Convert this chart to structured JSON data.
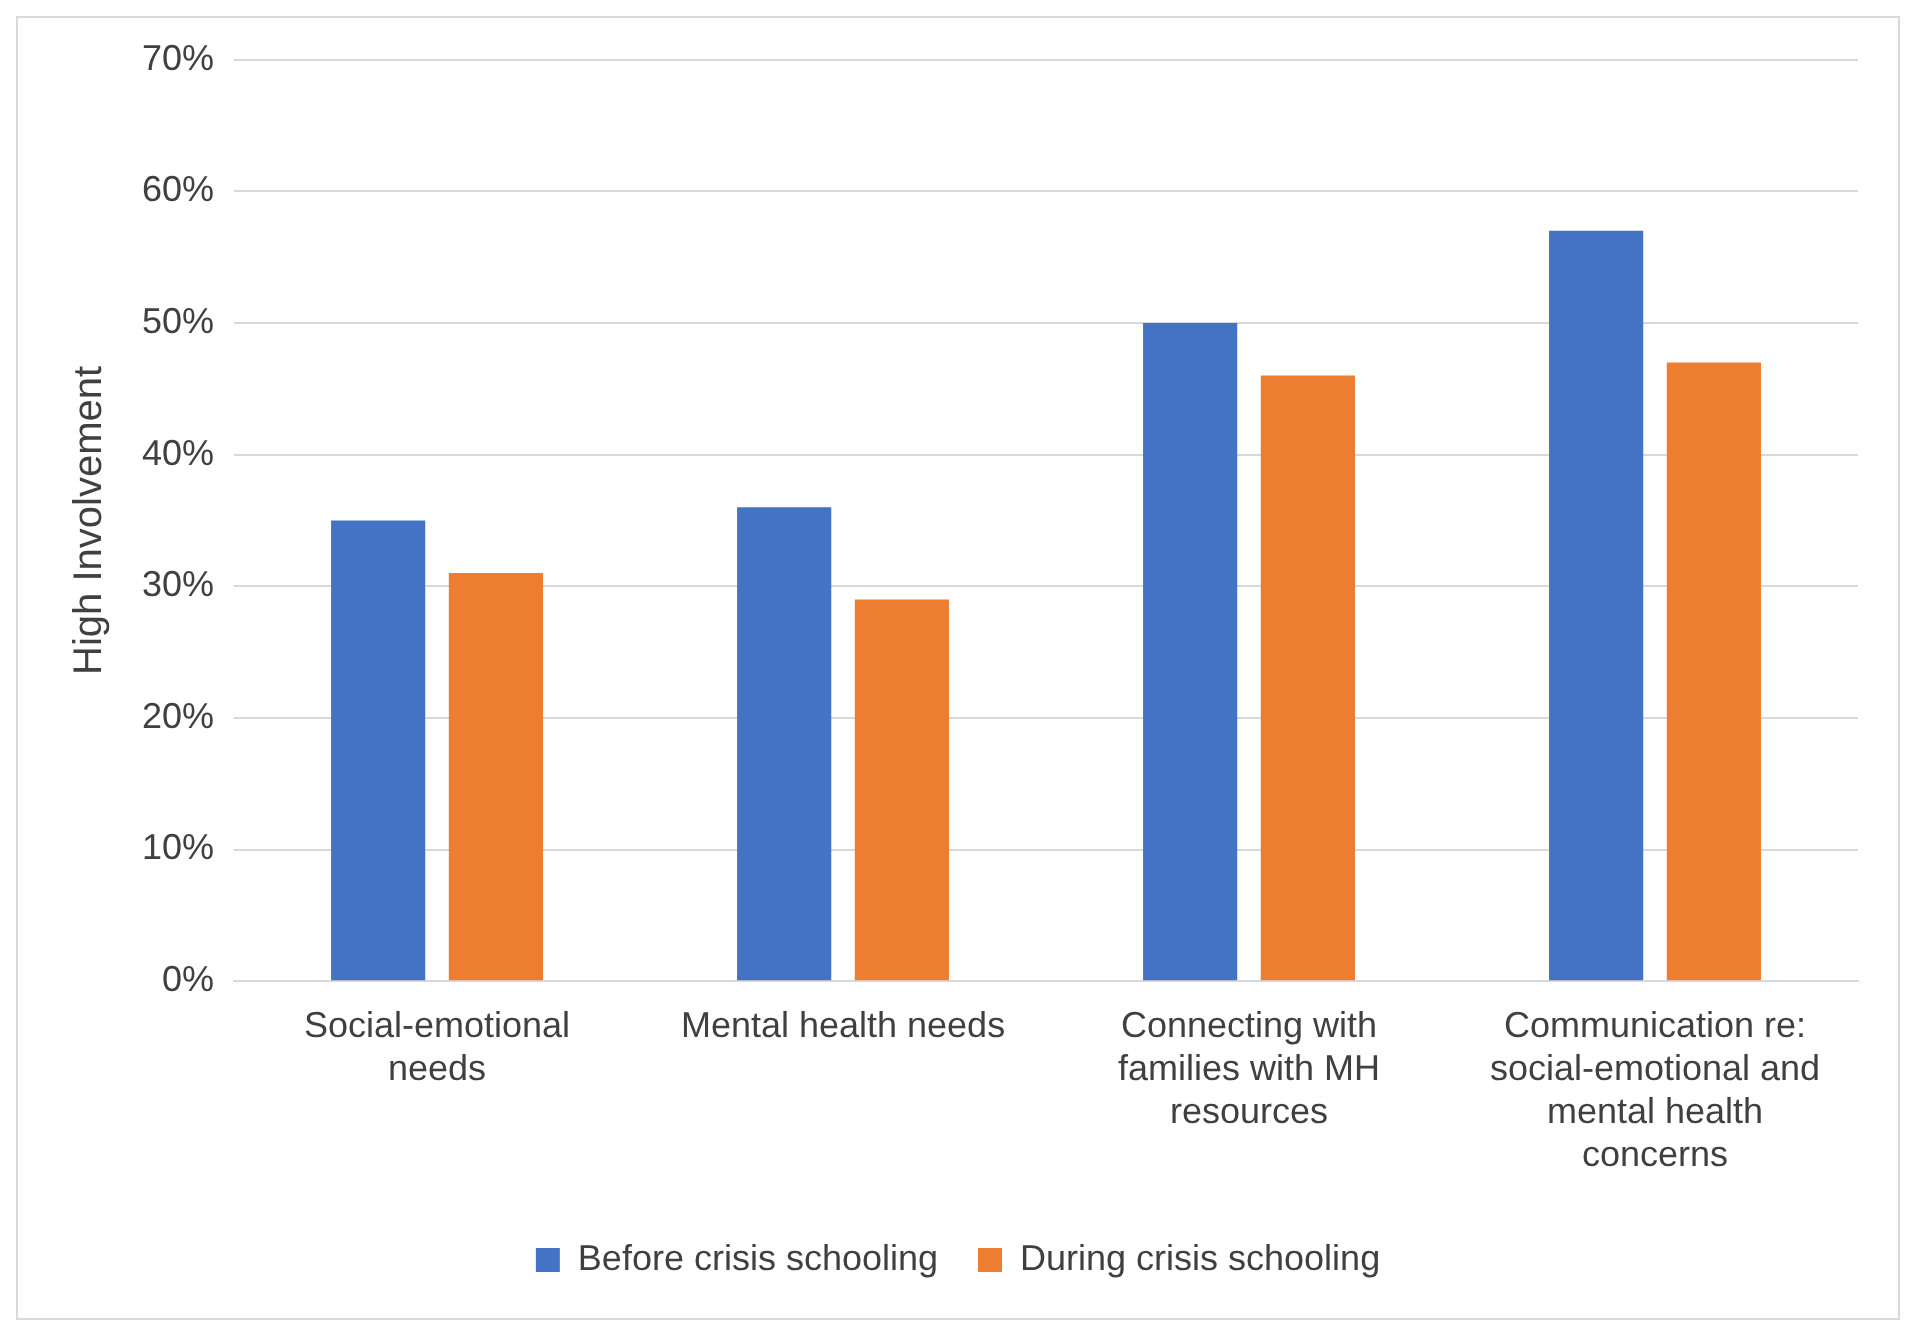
{
  "chart_data": {
    "type": "bar",
    "ylabel": "High Involvement",
    "categories": [
      "Social-emotional needs",
      "Mental health needs",
      "Connecting with families with MH resources",
      "Communication re: social-emotional and mental health concerns"
    ],
    "series": [
      {
        "name": "Before crisis schooling",
        "color": "#4472c4",
        "values": [
          35,
          36,
          50,
          57
        ]
      },
      {
        "name": "During crisis schooling",
        "color": "#ed7d31",
        "values": [
          31,
          29,
          46,
          47
        ]
      }
    ],
    "ylim": [
      0,
      70
    ],
    "yticks": [
      {
        "value": 0,
        "label": "0%"
      },
      {
        "value": 10,
        "label": "10%"
      },
      {
        "value": 20,
        "label": "20%"
      },
      {
        "value": 30,
        "label": "30%"
      },
      {
        "value": 40,
        "label": "40%"
      },
      {
        "value": 50,
        "label": "50%"
      },
      {
        "value": 60,
        "label": "60%"
      },
      {
        "value": 70,
        "label": "70%"
      }
    ],
    "grid": "y",
    "legend": "bottom"
  }
}
